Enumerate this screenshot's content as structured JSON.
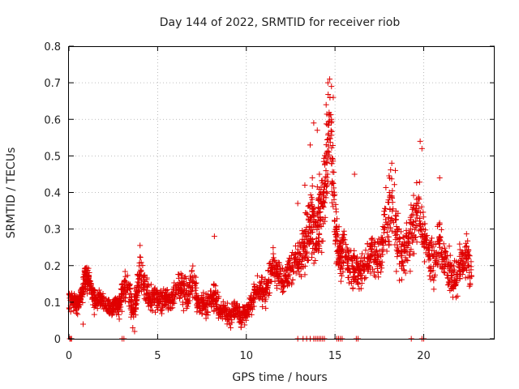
{
  "chart_data": {
    "type": "scatter",
    "title": "Day 144 of 2022, SRMTID for receiver riob",
    "xlabel": "GPS time / hours",
    "ylabel": "SRMTID / TECUs",
    "xlim": [
      0,
      24
    ],
    "ylim": [
      0,
      0.8
    ],
    "x_ticks": [
      0,
      5,
      10,
      15,
      20
    ],
    "y_ticks": [
      0,
      0.1,
      0.2,
      0.3,
      0.4,
      0.5,
      0.6,
      0.7,
      0.8
    ],
    "x_tick_labels": [
      "0",
      "5",
      "10",
      "15",
      "20"
    ],
    "y_tick_labels": [
      "0",
      "0.1",
      "0.2",
      "0.3",
      "0.4",
      "0.5",
      "0.6",
      "0.7",
      "0.8"
    ],
    "grid": true,
    "marker": "+",
    "color": "#e00000",
    "series": [
      {
        "name": "SRMTID",
        "profile_x": [
          0.0,
          0.3,
          0.5,
          0.7,
          0.9,
          1.1,
          1.3,
          1.5,
          1.8,
          2.1,
          2.4,
          2.6,
          2.8,
          3.0,
          3.3,
          3.6,
          3.8,
          4.0,
          4.3,
          4.6,
          4.9,
          5.2,
          5.5,
          5.8,
          6.1,
          6.4,
          6.7,
          7.0,
          7.3,
          7.6,
          7.9,
          8.2,
          8.5,
          8.8,
          9.1,
          9.4,
          9.7,
          10.0,
          10.3,
          10.6,
          10.9,
          11.2,
          11.5,
          11.8,
          12.1,
          12.4,
          12.7,
          13.0,
          13.3,
          13.5,
          13.7,
          13.9,
          14.1,
          14.3,
          14.5,
          14.7,
          14.9,
          15.1,
          15.3,
          15.5,
          15.8,
          16.1,
          16.4,
          16.7,
          17.0,
          17.3,
          17.6,
          17.9,
          18.2,
          18.5,
          18.8,
          19.1,
          19.4,
          19.7,
          20.0,
          20.3,
          20.6,
          20.9,
          21.2,
          21.5,
          21.8,
          22.1,
          22.4,
          22.7
        ],
        "profile_mid": [
          0.1,
          0.11,
          0.09,
          0.12,
          0.16,
          0.17,
          0.12,
          0.1,
          0.11,
          0.09,
          0.08,
          0.1,
          0.09,
          0.12,
          0.15,
          0.08,
          0.11,
          0.18,
          0.14,
          0.1,
          0.12,
          0.1,
          0.12,
          0.11,
          0.13,
          0.14,
          0.12,
          0.16,
          0.1,
          0.09,
          0.1,
          0.12,
          0.08,
          0.07,
          0.06,
          0.08,
          0.06,
          0.07,
          0.1,
          0.14,
          0.12,
          0.15,
          0.2,
          0.18,
          0.16,
          0.18,
          0.2,
          0.22,
          0.25,
          0.3,
          0.32,
          0.28,
          0.33,
          0.35,
          0.48,
          0.58,
          0.42,
          0.26,
          0.22,
          0.25,
          0.2,
          0.19,
          0.17,
          0.2,
          0.22,
          0.21,
          0.24,
          0.32,
          0.38,
          0.28,
          0.22,
          0.26,
          0.3,
          0.36,
          0.28,
          0.24,
          0.2,
          0.26,
          0.2,
          0.18,
          0.16,
          0.2,
          0.22,
          0.18
        ],
        "profile_spread": [
          0.03,
          0.03,
          0.03,
          0.03,
          0.04,
          0.04,
          0.04,
          0.04,
          0.03,
          0.03,
          0.03,
          0.03,
          0.03,
          0.04,
          0.05,
          0.04,
          0.05,
          0.06,
          0.05,
          0.04,
          0.04,
          0.04,
          0.04,
          0.04,
          0.05,
          0.05,
          0.05,
          0.06,
          0.04,
          0.04,
          0.04,
          0.05,
          0.04,
          0.03,
          0.03,
          0.03,
          0.03,
          0.03,
          0.04,
          0.05,
          0.05,
          0.05,
          0.05,
          0.05,
          0.05,
          0.05,
          0.06,
          0.07,
          0.08,
          0.1,
          0.12,
          0.12,
          0.14,
          0.14,
          0.15,
          0.13,
          0.15,
          0.09,
          0.08,
          0.08,
          0.07,
          0.07,
          0.06,
          0.07,
          0.07,
          0.07,
          0.08,
          0.1,
          0.1,
          0.09,
          0.08,
          0.09,
          0.09,
          0.1,
          0.08,
          0.08,
          0.07,
          0.08,
          0.07,
          0.06,
          0.06,
          0.07,
          0.07,
          0.06
        ],
        "profile_point_counts": [
          30,
          30,
          30,
          30,
          30,
          30,
          30,
          30,
          30,
          30,
          30,
          30,
          30,
          30,
          30,
          30,
          30,
          30,
          30,
          30,
          30,
          30,
          30,
          30,
          30,
          30,
          30,
          30,
          30,
          30,
          30,
          30,
          30,
          30,
          30,
          30,
          30,
          30,
          30,
          30,
          30,
          30,
          30,
          30,
          30,
          30,
          30,
          30,
          30,
          30,
          30,
          30,
          30,
          30,
          30,
          30,
          30,
          30,
          30,
          30,
          30,
          30,
          30,
          30,
          30,
          30,
          30,
          30,
          30,
          30,
          30,
          30,
          30,
          30,
          30,
          30,
          30,
          30,
          30,
          30,
          30,
          30,
          30,
          30
        ]
      }
    ],
    "extreme_points": [
      {
        "x": 14.7,
        "y": 0.71
      },
      {
        "x": 14.6,
        "y": 0.7
      },
      {
        "x": 14.8,
        "y": 0.69
      },
      {
        "x": 14.9,
        "y": 0.66
      },
      {
        "x": 14.5,
        "y": 0.64
      },
      {
        "x": 14.8,
        "y": 0.6
      },
      {
        "x": 13.8,
        "y": 0.59
      },
      {
        "x": 14.0,
        "y": 0.57
      },
      {
        "x": 13.6,
        "y": 0.53
      },
      {
        "x": 19.8,
        "y": 0.54
      },
      {
        "x": 19.9,
        "y": 0.52
      },
      {
        "x": 18.2,
        "y": 0.48
      },
      {
        "x": 18.4,
        "y": 0.46
      },
      {
        "x": 16.1,
        "y": 0.45
      },
      {
        "x": 20.9,
        "y": 0.44
      },
      {
        "x": 8.2,
        "y": 0.28
      },
      {
        "x": 3.6,
        "y": 0.03
      },
      {
        "x": 3.7,
        "y": 0.02
      },
      {
        "x": 0.8,
        "y": 0.04
      },
      {
        "x": 13.1,
        "y": 0.17
      },
      {
        "x": 12.9,
        "y": 0.37
      },
      {
        "x": 13.3,
        "y": 0.42
      }
    ],
    "zero_points_x": [
      0.05,
      0.1,
      0.15,
      3.0,
      3.1,
      12.9,
      13.2,
      13.4,
      13.6,
      13.8,
      13.9,
      14.0,
      14.1,
      14.2,
      14.3,
      14.4,
      15.1,
      15.2,
      15.3,
      15.4,
      16.2,
      16.3,
      19.3,
      19.9,
      20.0
    ]
  }
}
